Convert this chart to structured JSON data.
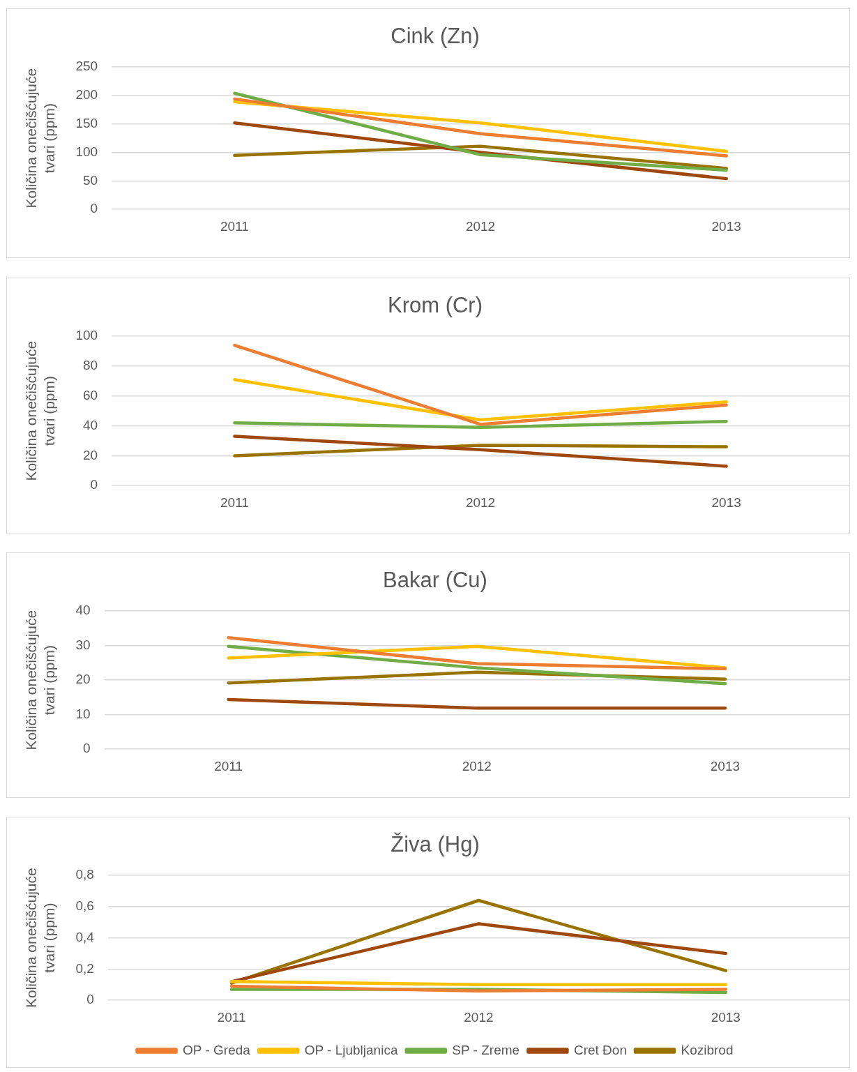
{
  "chart_data": [
    {
      "type": "line",
      "title": "Cink (Zn)",
      "ylabel": "Količina onečišćujuće tvari (ppm)",
      "categories": [
        "2011",
        "2012",
        "2013"
      ],
      "ylim": [
        0,
        250
      ],
      "yticks": [
        0,
        50,
        100,
        150,
        200,
        250
      ],
      "grid": "y",
      "legend": false,
      "marker": "none",
      "line_style": "solid",
      "series": [
        {
          "color": "#ed7d31",
          "values": [
            194,
            133,
            94
          ]
        },
        {
          "color": "#ffc000",
          "values": [
            189,
            152,
            102
          ]
        },
        {
          "color": "#70ad47",
          "values": [
            204,
            96,
            69
          ]
        },
        {
          "color": "#9e480e",
          "values": [
            152,
            100,
            54
          ]
        },
        {
          "color": "#997300",
          "values": [
            95,
            111,
            72
          ]
        }
      ]
    },
    {
      "type": "line",
      "title": "Krom (Cr)",
      "ylabel": "Količina onečišćujuće tvari (ppm)",
      "categories": [
        "2011",
        "2012",
        "2013"
      ],
      "ylim": [
        0,
        100
      ],
      "yticks": [
        0,
        20,
        40,
        60,
        80,
        100
      ],
      "grid": "y",
      "legend": false,
      "marker": "none",
      "line_style": "solid",
      "series": [
        {
          "color": "#ed7d31",
          "values": [
            94,
            41,
            54
          ]
        },
        {
          "color": "#ffc000",
          "values": [
            71,
            44,
            56
          ]
        },
        {
          "color": "#70ad47",
          "values": [
            42,
            39,
            43
          ]
        },
        {
          "color": "#9e480e",
          "values": [
            33,
            24,
            13
          ]
        },
        {
          "color": "#997300",
          "values": [
            20,
            27,
            26
          ]
        }
      ]
    },
    {
      "type": "line",
      "title": "Bakar (Cu)",
      "ylabel": "Količina onečišćujuće tvari (ppm)",
      "categories": [
        "2011",
        "2012",
        "2013"
      ],
      "ylim": [
        0,
        40
      ],
      "yticks": [
        0,
        10,
        20,
        30,
        40
      ],
      "grid": "y",
      "legend": false,
      "marker": "none",
      "line_style": "solid",
      "series": [
        {
          "color": "#ed7d31",
          "values": [
            32.3,
            24.8,
            23.3
          ]
        },
        {
          "color": "#ffc000",
          "values": [
            26.4,
            29.8,
            23.6
          ]
        },
        {
          "color": "#70ad47",
          "values": [
            29.8,
            23.6,
            19
          ]
        },
        {
          "color": "#9e480e",
          "values": [
            14.4,
            11.9,
            11.9
          ]
        },
        {
          "color": "#997300",
          "values": [
            19.2,
            22.3,
            20.3
          ]
        }
      ]
    },
    {
      "type": "line",
      "title": "Živa (Hg)",
      "ylabel": "Količina onečišćujuće tvari (ppm)",
      "categories": [
        "2011",
        "2012",
        "2013"
      ],
      "ylim": [
        0,
        0.8
      ],
      "yticks": [
        0,
        {
          "value": 0.2,
          "label": "0,2"
        },
        {
          "value": 0.4,
          "label": "0,4"
        },
        {
          "value": 0.6,
          "label": "0,6"
        },
        {
          "value": 0.8,
          "label": "0,8"
        }
      ],
      "grid": "y",
      "legend": "bottom",
      "marker": "none",
      "line_style": "solid",
      "series": [
        {
          "name": "OP - Greda",
          "color": "#ed7d31",
          "values": [
            0.09,
            0.06,
            0.07
          ]
        },
        {
          "name": "OP - Ljubljanica",
          "color": "#ffc000",
          "values": [
            0.12,
            0.1,
            0.1
          ]
        },
        {
          "name": "SP - Zreme",
          "color": "#70ad47",
          "values": [
            0.07,
            0.07,
            0.05
          ]
        },
        {
          "name": "Cret Đon",
          "color": "#9e480e",
          "values": [
            0.12,
            0.49,
            0.3
          ]
        },
        {
          "name": "Kozibrod",
          "color": "#997300",
          "values": [
            0.11,
            0.64,
            0.19
          ]
        }
      ]
    }
  ]
}
